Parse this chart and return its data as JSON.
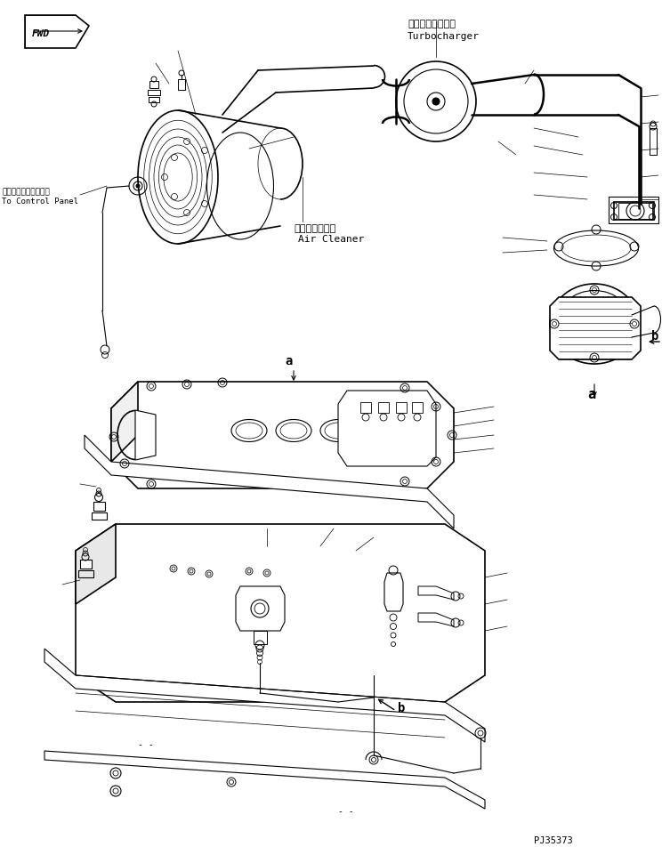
{
  "bg_color": "#ffffff",
  "line_color": "#000000",
  "fig_width": 7.44,
  "fig_height": 9.62,
  "dpi": 100,
  "part_number": "PJ35373",
  "fwd_label": "FWD",
  "turbocharger_jp": "ターボチャージャ",
  "turbocharger_en": "Turbocharger",
  "air_cleaner_jp": "エアークリーナ",
  "air_cleaner_en": "Air Cleaner",
  "control_panel_jp": "コントロールパネルへ",
  "control_panel_en": "To Control Panel",
  "label_a": "a",
  "label_b": "b"
}
